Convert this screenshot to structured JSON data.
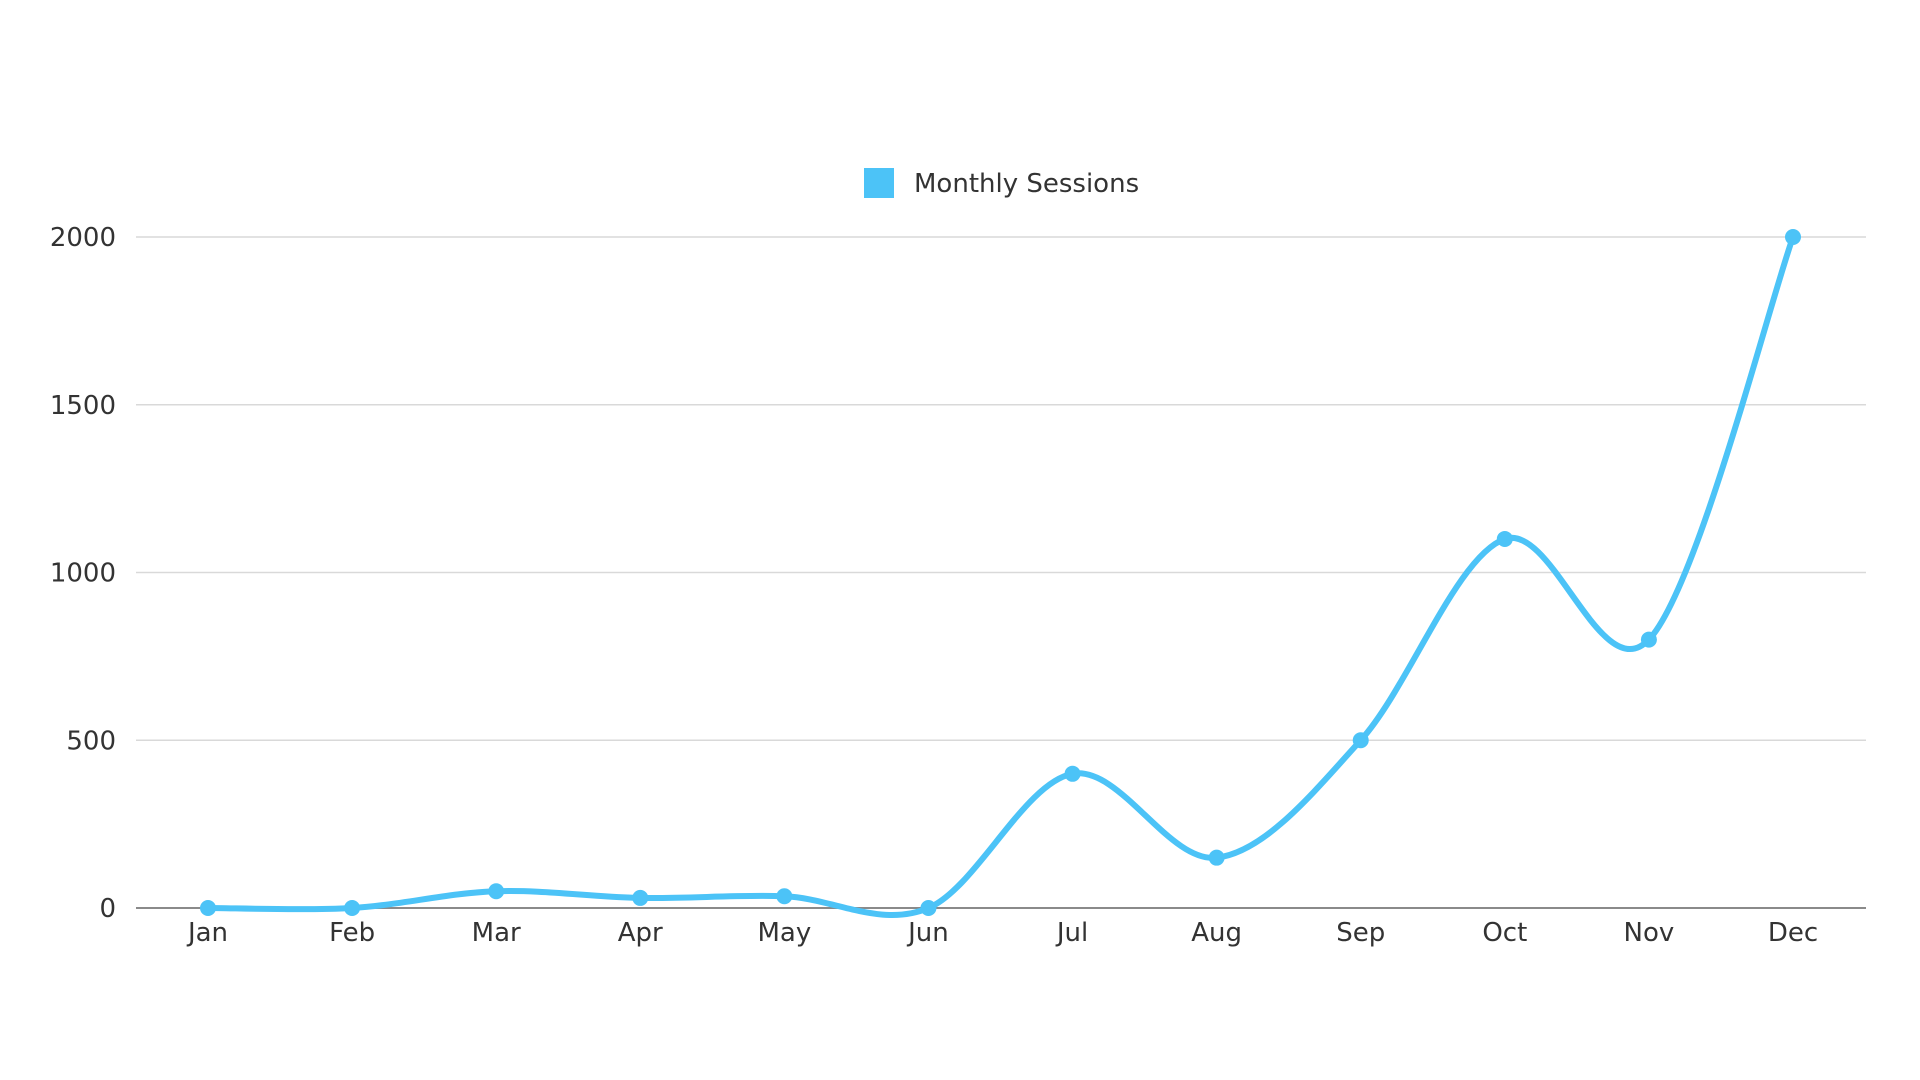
{
  "chart_data": {
    "type": "line",
    "title": "",
    "xlabel": "",
    "ylabel": "",
    "categories": [
      "Jan",
      "Feb",
      "Mar",
      "Apr",
      "May",
      "Jun",
      "Jul",
      "Aug",
      "Sep",
      "Oct",
      "Nov",
      "Dec"
    ],
    "series": [
      {
        "name": "Monthly Sessions",
        "color": "#4cc3f7",
        "values": [
          0,
          0,
          50,
          30,
          35,
          0,
          400,
          150,
          500,
          1100,
          800,
          2000
        ]
      }
    ],
    "ylim": [
      0,
      2000
    ],
    "yticks": [
      0,
      500,
      1000,
      1500,
      2000
    ],
    "grid": true,
    "smooth": true,
    "legend_position": "top-center"
  }
}
